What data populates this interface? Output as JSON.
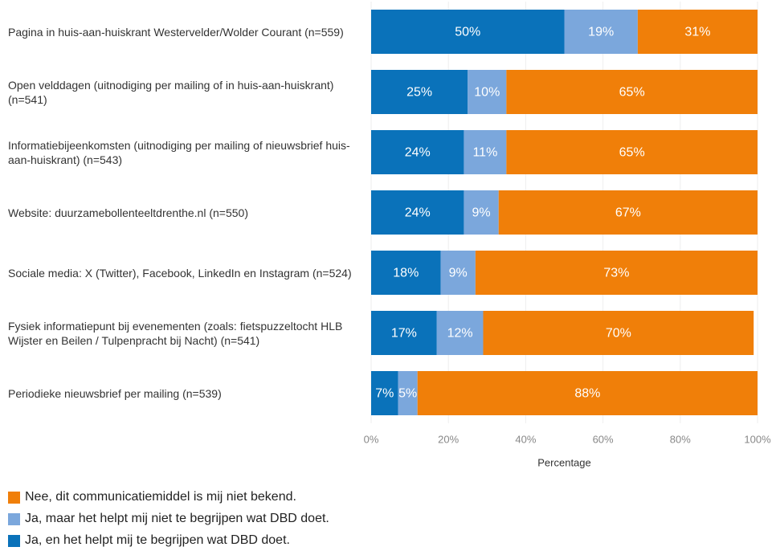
{
  "chart_data": {
    "type": "stacked_barh",
    "categories": [
      "Pagina in huis-aan-huiskrant Westervelder/Wolder Courant (n=559)",
      "Open velddagen (uitnodiging per mailing of in huis-aan-huiskrant) (n=541)",
      "Informatiebijeenkomsten (uitnodiging per mailing of nieuwsbrief huis-aan-huiskrant) (n=543)",
      "Website: duurzamebollenteeltdrenthe.nl (n=550)",
      "Sociale media: X (Twitter), Facebook, LinkedIn en Instagram (n=524)",
      "Fysiek informatiepunt bij evenementen (zoals: fietspuzzeltocht HLB Wijster en Beilen / Tulpenpracht bij Nacht) (n=541)",
      "Periodieke nieuwsbrief per mailing (n=539)"
    ],
    "series": [
      {
        "name": "Nee, dit communicatiemiddel is mij niet bekend.",
        "color": "#f07f09",
        "values": [
          31,
          65,
          65,
          67,
          73,
          70,
          88
        ],
        "value_labels": [
          "31%",
          "65%",
          "65%",
          "67%",
          "73%",
          "70%",
          "88%"
        ]
      },
      {
        "name": "Ja, maar het helpt mij niet te begrijpen wat DBD doet.",
        "color": "#7ba7dc",
        "values": [
          19,
          10,
          11,
          9,
          9,
          12,
          5
        ],
        "value_labels": [
          "19%",
          "10%",
          "11%",
          "9%",
          "9%",
          "12%",
          "5%"
        ]
      },
      {
        "name": "Ja, en het helpt mij te begrijpen wat DBD doet.",
        "color": "#0a72ba",
        "values": [
          50,
          25,
          24,
          24,
          18,
          17,
          7
        ],
        "value_labels": [
          "50%",
          "25%",
          "24%",
          "24%",
          "18%",
          "17%",
          "7%"
        ]
      }
    ],
    "xlabel": "Percentage",
    "xlim": [
      0,
      100
    ],
    "xticks": [
      {
        "value": 0,
        "label": "0%"
      },
      {
        "value": 20,
        "label": "20%"
      },
      {
        "value": 40,
        "label": "40%"
      },
      {
        "value": 60,
        "label": "60%"
      },
      {
        "value": 80,
        "label": "80%"
      },
      {
        "value": 100,
        "label": "100%"
      }
    ],
    "grid": true,
    "legend": "bottom-left"
  }
}
